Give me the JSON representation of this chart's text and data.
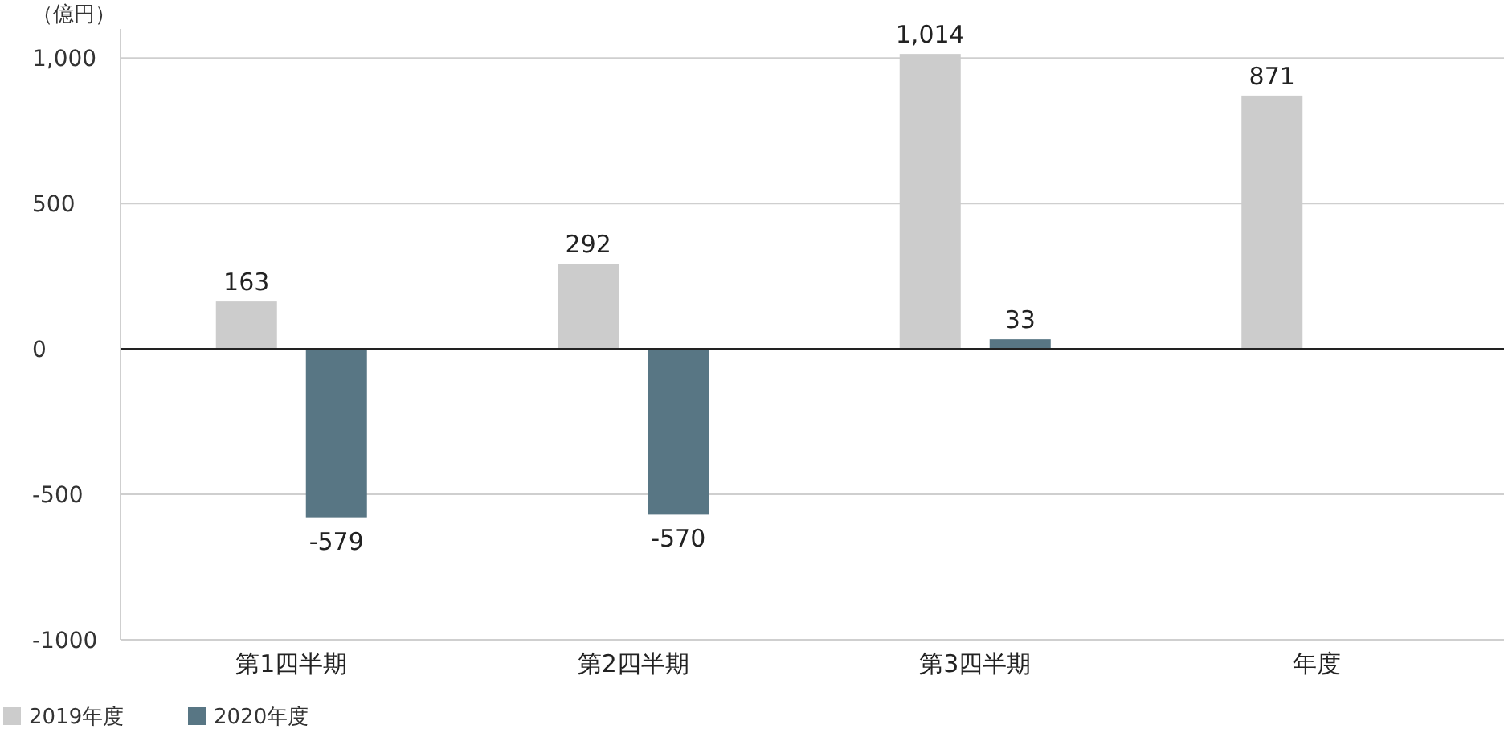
{
  "chart_data": {
    "type": "bar",
    "ylabel": "（億円）",
    "categories": [
      "第1四半期",
      "第2四半期",
      "第3四半期",
      "年度"
    ],
    "series": [
      {
        "name": "2019年度",
        "color": "#cccccc",
        "values": [
          163,
          292,
          1014,
          871
        ],
        "value_labels": [
          "163",
          "292",
          "1,014",
          "871"
        ]
      },
      {
        "name": "2020年度",
        "color": "#587684",
        "values": [
          -579,
          -570,
          33,
          null
        ],
        "value_labels": [
          "-579",
          "-570",
          "33",
          null
        ]
      }
    ],
    "ylim": [
      -1000,
      1100
    ],
    "yticks": [
      {
        "value": 1000,
        "label": "1,000"
      },
      500,
      0,
      -500,
      {
        "value": -1000,
        "label": "-1000"
      }
    ],
    "grid": "y",
    "legend": "bottom left"
  }
}
